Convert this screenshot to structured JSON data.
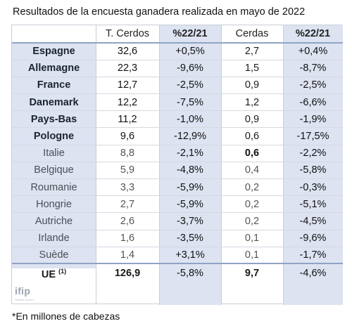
{
  "title": "Resultados de la encuesta ganadera realizada en mayo de 2022",
  "headers": [
    "",
    "T. Cerdos",
    "%22/21",
    "Cerdas",
    "%22/21"
  ],
  "rows": [
    {
      "country": "Espagne",
      "pigs": "32,6",
      "pigs_pct": "+0,5%",
      "sows": "2,7",
      "sows_pct": "+0,4%",
      "style": "bold"
    },
    {
      "country": "Allemagne",
      "pigs": "22,3",
      "pigs_pct": "-9,6%",
      "sows": "1,5",
      "sows_pct": "-8,7%",
      "style": "bold"
    },
    {
      "country": "France",
      "pigs": "12,7",
      "pigs_pct": "-2,5%",
      "sows": "0,9",
      "sows_pct": "-2,5%",
      "style": "bold"
    },
    {
      "country": "Danemark",
      "pigs": "12,2",
      "pigs_pct": "-7,5%",
      "sows": "1,2",
      "sows_pct": "-6,6%",
      "style": "bold"
    },
    {
      "country": "Pays-Bas",
      "pigs": "11,2",
      "pigs_pct": "-1,0%",
      "sows": "0,9",
      "sows_pct": "-1,9%",
      "style": "bold"
    },
    {
      "country": "Pologne",
      "pigs": "9,6",
      "pigs_pct": "-12,9%",
      "sows": "0,6",
      "sows_pct": "-17,5%",
      "style": "bold"
    },
    {
      "country": "Italie",
      "pigs": "8,8",
      "pigs_pct": "-2,1%",
      "sows": "0,6",
      "sows_pct": "-2,2%",
      "style": "light"
    },
    {
      "country": "Belgique",
      "pigs": "5,9",
      "pigs_pct": "-4,8%",
      "sows": "0,4",
      "sows_pct": "-5,8%",
      "style": "light"
    },
    {
      "country": "Roumanie",
      "pigs": "3,3",
      "pigs_pct": "-5,9%",
      "sows": "0,2",
      "sows_pct": "-0,3%",
      "style": "light"
    },
    {
      "country": "Hongrie",
      "pigs": "2,7",
      "pigs_pct": "-5,9%",
      "sows": "0,2",
      "sows_pct": "-5,1%",
      "style": "light"
    },
    {
      "country": "Autriche",
      "pigs": "2,6",
      "pigs_pct": "-3,7%",
      "sows": "0,2",
      "sows_pct": "-4,5%",
      "style": "light"
    },
    {
      "country": "Irlande",
      "pigs": "1,6",
      "pigs_pct": "-3,5%",
      "sows": "0,1",
      "sows_pct": "-9,6%",
      "style": "light"
    },
    {
      "country": "Suède",
      "pigs": "1,4",
      "pigs_pct": "+3,1%",
      "sows": "0,1",
      "sows_pct": "-1,7%",
      "style": "light"
    }
  ],
  "total": {
    "country": "UE",
    "note": "(1)",
    "pigs": "126,9",
    "pigs_pct": "-5,8%",
    "sows": "9,7",
    "sows_pct": "-4,6%"
  },
  "logo": "ifip",
  "logo_tag": "l'institut du porc",
  "footnote": "*En millones de cabezas",
  "colors": {
    "shade": "#dde3f1",
    "rule": "#8fa3c4"
  }
}
